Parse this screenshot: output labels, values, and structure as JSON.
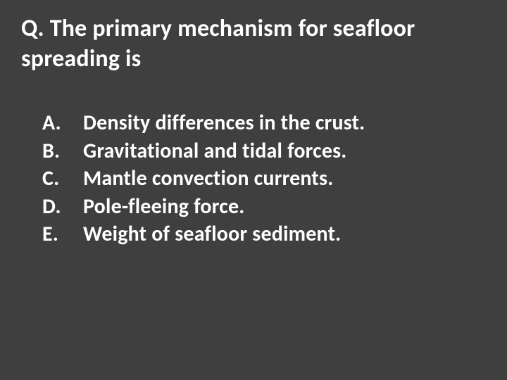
{
  "slide": {
    "background_color": "#3f3f3f",
    "text_color": "#ffffff",
    "question_prefix": "Q.",
    "question_text": "Q. The primary mechanism for seafloor spreading is",
    "question_fontsize": 34,
    "question_fontweight": 700,
    "options_fontsize": 30,
    "options_fontweight": 700,
    "options": [
      {
        "letter": "A.",
        "text": "Density differences in the crust."
      },
      {
        "letter": "B.",
        "text": "Gravitational and tidal forces."
      },
      {
        "letter": "C.",
        "text": "Mantle convection currents."
      },
      {
        "letter": "D.",
        "text": "Pole-fleeing force."
      },
      {
        "letter": "E.",
        "text": "Weight of seafloor sediment."
      }
    ]
  }
}
